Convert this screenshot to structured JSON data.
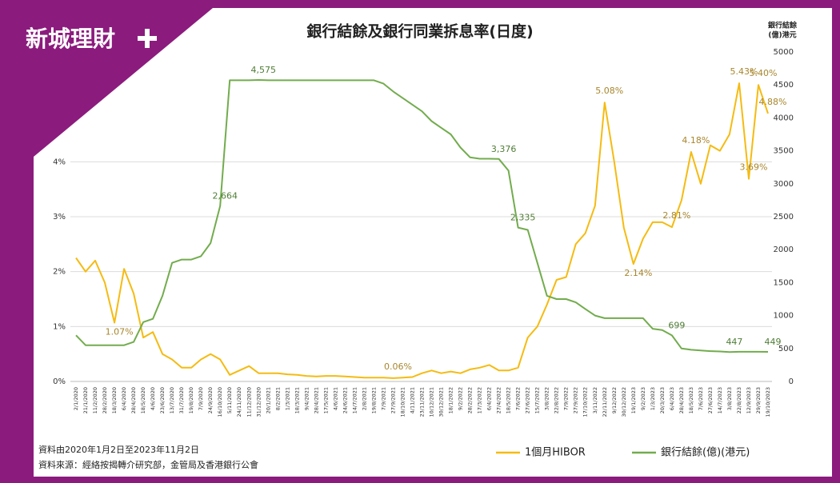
{
  "logo": "新城理財",
  "chart_data": {
    "type": "line",
    "title": "銀行結餘及銀行同業拆息率(日度)",
    "y2_title": [
      "銀行結餘",
      "(億)港元"
    ],
    "notes": [
      "資料由2020年1月2日至2023年11月2日",
      "資料來源：經絡按揭轉介研究部，金管局及香港銀行公會"
    ],
    "categories": [
      "2/1/2020",
      "21/1/2020",
      "11/2/2020",
      "28/2/2020",
      "18/3/2020",
      "6/4/2020",
      "28/4/2020",
      "18/5/2020",
      "4/6/2020",
      "23/6/2020",
      "13/7/2020",
      "31/7/2020",
      "19/8/2020",
      "7/9/2020",
      "24/9/2020",
      "16/10/2020",
      "5/11/2020",
      "24/11/2020",
      "11/12/2020",
      "31/12/2020",
      "20/1/2021",
      "8/2/2021",
      "1/3/2021",
      "18/3/2021",
      "9/4/2021",
      "28/4/2021",
      "17/5/2021",
      "4/6/2021",
      "24/6/2021",
      "14/7/2021",
      "2/8/2021",
      "19/8/2021",
      "7/9/2021",
      "27/9/2021",
      "18/10/2021",
      "4/11/2021",
      "23/11/2021",
      "10/12/2021",
      "30/12/2021",
      "18/1/2022",
      "9/2/2022",
      "28/2/2022",
      "17/3/2022",
      "6/4/2022",
      "27/4/2022",
      "18/5/2022",
      "7/6/2022",
      "27/6/2022",
      "15/7/2022",
      "3/8/2022",
      "22/8/2022",
      "7/9/2022",
      "27/9/2022",
      "17/10/2022",
      "3/11/2022",
      "22/11/2022",
      "9/12/2022",
      "30/12/2022",
      "19/1/2023",
      "9/2/2023",
      "1/3/2023",
      "20/3/2023",
      "6/4/2023",
      "28/4/2023",
      "18/5/2023",
      "7/6/2023",
      "27/6/2023",
      "14/7/2023",
      "3/8/2023",
      "22/8/2023",
      "12/9/2023",
      "29/9/2023",
      "19/10/2023"
    ],
    "series": [
      {
        "name": "1個月HIBOR",
        "color": "#f5bb12",
        "label_color": "#a8862c",
        "values": [
          2.25,
          2.0,
          2.2,
          1.8,
          1.07,
          2.05,
          1.6,
          0.8,
          0.9,
          0.5,
          0.4,
          0.25,
          0.25,
          0.4,
          0.5,
          0.4,
          0.12,
          0.2,
          0.28,
          0.15,
          0.15,
          0.15,
          0.13,
          0.12,
          0.1,
          0.09,
          0.1,
          0.1,
          0.09,
          0.08,
          0.07,
          0.07,
          0.07,
          0.06,
          0.07,
          0.08,
          0.15,
          0.2,
          0.15,
          0.18,
          0.15,
          0.22,
          0.25,
          0.3,
          0.2,
          0.2,
          0.25,
          0.8,
          1.0,
          1.4,
          1.85,
          1.9,
          2.5,
          2.7,
          3.2,
          5.08,
          4.0,
          2.8,
          2.14,
          2.6,
          2.9,
          2.9,
          2.81,
          3.3,
          4.18,
          3.6,
          4.3,
          4.2,
          4.5,
          5.43,
          3.69,
          5.4,
          4.88
        ],
        "value_labels": [
          null,
          null,
          null,
          null,
          "1.07%",
          null,
          null,
          null,
          null,
          null,
          null,
          null,
          null,
          null,
          null,
          null,
          null,
          null,
          null,
          null,
          null,
          null,
          null,
          null,
          null,
          null,
          null,
          null,
          null,
          null,
          null,
          null,
          null,
          "0.06%",
          null,
          null,
          null,
          null,
          null,
          null,
          null,
          null,
          null,
          null,
          null,
          null,
          null,
          null,
          null,
          null,
          null,
          null,
          null,
          null,
          null,
          "5.08%",
          null,
          null,
          "2.14%",
          null,
          null,
          null,
          "2.81%",
          null,
          "4.18%",
          null,
          null,
          null,
          null,
          "5.43%",
          "3.69%",
          "5.40%",
          "4.88%"
        ]
      },
      {
        "name": "銀行結餘(億)(港元)",
        "color": "#72ac4d",
        "label_color": "#4f7d35",
        "axis": "y2",
        "values": [
          700,
          550,
          550,
          550,
          550,
          550,
          600,
          900,
          950,
          1300,
          1800,
          1850,
          1850,
          1900,
          2100,
          2664,
          4570,
          4570,
          4570,
          4575,
          4570,
          4570,
          4570,
          4570,
          4570,
          4570,
          4570,
          4570,
          4570,
          4570,
          4570,
          4570,
          4520,
          4400,
          4300,
          4200,
          4100,
          3950,
          3850,
          3750,
          3550,
          3400,
          3380,
          3380,
          3376,
          3200,
          2335,
          2300,
          1800,
          1300,
          1250,
          1250,
          1200,
          1100,
          1000,
          960,
          960,
          960,
          960,
          960,
          800,
          780,
          699,
          500,
          480,
          470,
          460,
          455,
          447,
          450,
          450,
          450,
          449
        ],
        "value_labels": [
          null,
          null,
          null,
          null,
          null,
          null,
          null,
          null,
          null,
          null,
          null,
          null,
          null,
          null,
          null,
          "2,664",
          null,
          null,
          null,
          "4,575",
          null,
          null,
          null,
          null,
          null,
          null,
          null,
          null,
          null,
          null,
          null,
          null,
          null,
          null,
          null,
          null,
          null,
          null,
          null,
          null,
          null,
          null,
          null,
          null,
          "3,376",
          null,
          "2,335",
          null,
          null,
          null,
          null,
          null,
          null,
          null,
          null,
          null,
          null,
          null,
          null,
          null,
          null,
          null,
          "699",
          null,
          null,
          null,
          null,
          null,
          "447",
          null,
          null,
          null,
          "449"
        ]
      }
    ],
    "ylim": [
      0,
      6
    ],
    "yticks": [
      {
        "value": 0,
        "label": "0%"
      },
      {
        "value": 1,
        "label": "1%"
      },
      {
        "value": 2,
        "label": "2%"
      },
      {
        "value": 3,
        "label": "3%"
      },
      {
        "value": 4,
        "label": "4%"
      }
    ],
    "y2lim": [
      0,
      5000
    ],
    "y2ticks": [
      0,
      500,
      1000,
      1500,
      2000,
      2500,
      3000,
      3500,
      4000,
      4500,
      5000
    ],
    "grid": true,
    "legend": "bottom-right"
  }
}
